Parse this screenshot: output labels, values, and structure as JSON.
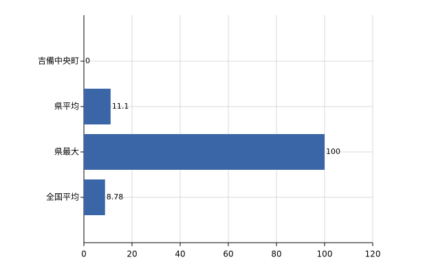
{
  "chart_data": {
    "type": "bar",
    "orientation": "horizontal",
    "categories": [
      "吉備中央町",
      "県平均",
      "県最大",
      "全国平均"
    ],
    "values": [
      0,
      11.1,
      100,
      8.78
    ],
    "color": "#3a66a7",
    "xlim": [
      0,
      120
    ],
    "xticks": [
      0,
      20,
      40,
      60,
      80,
      100,
      120
    ],
    "grid": true
  }
}
